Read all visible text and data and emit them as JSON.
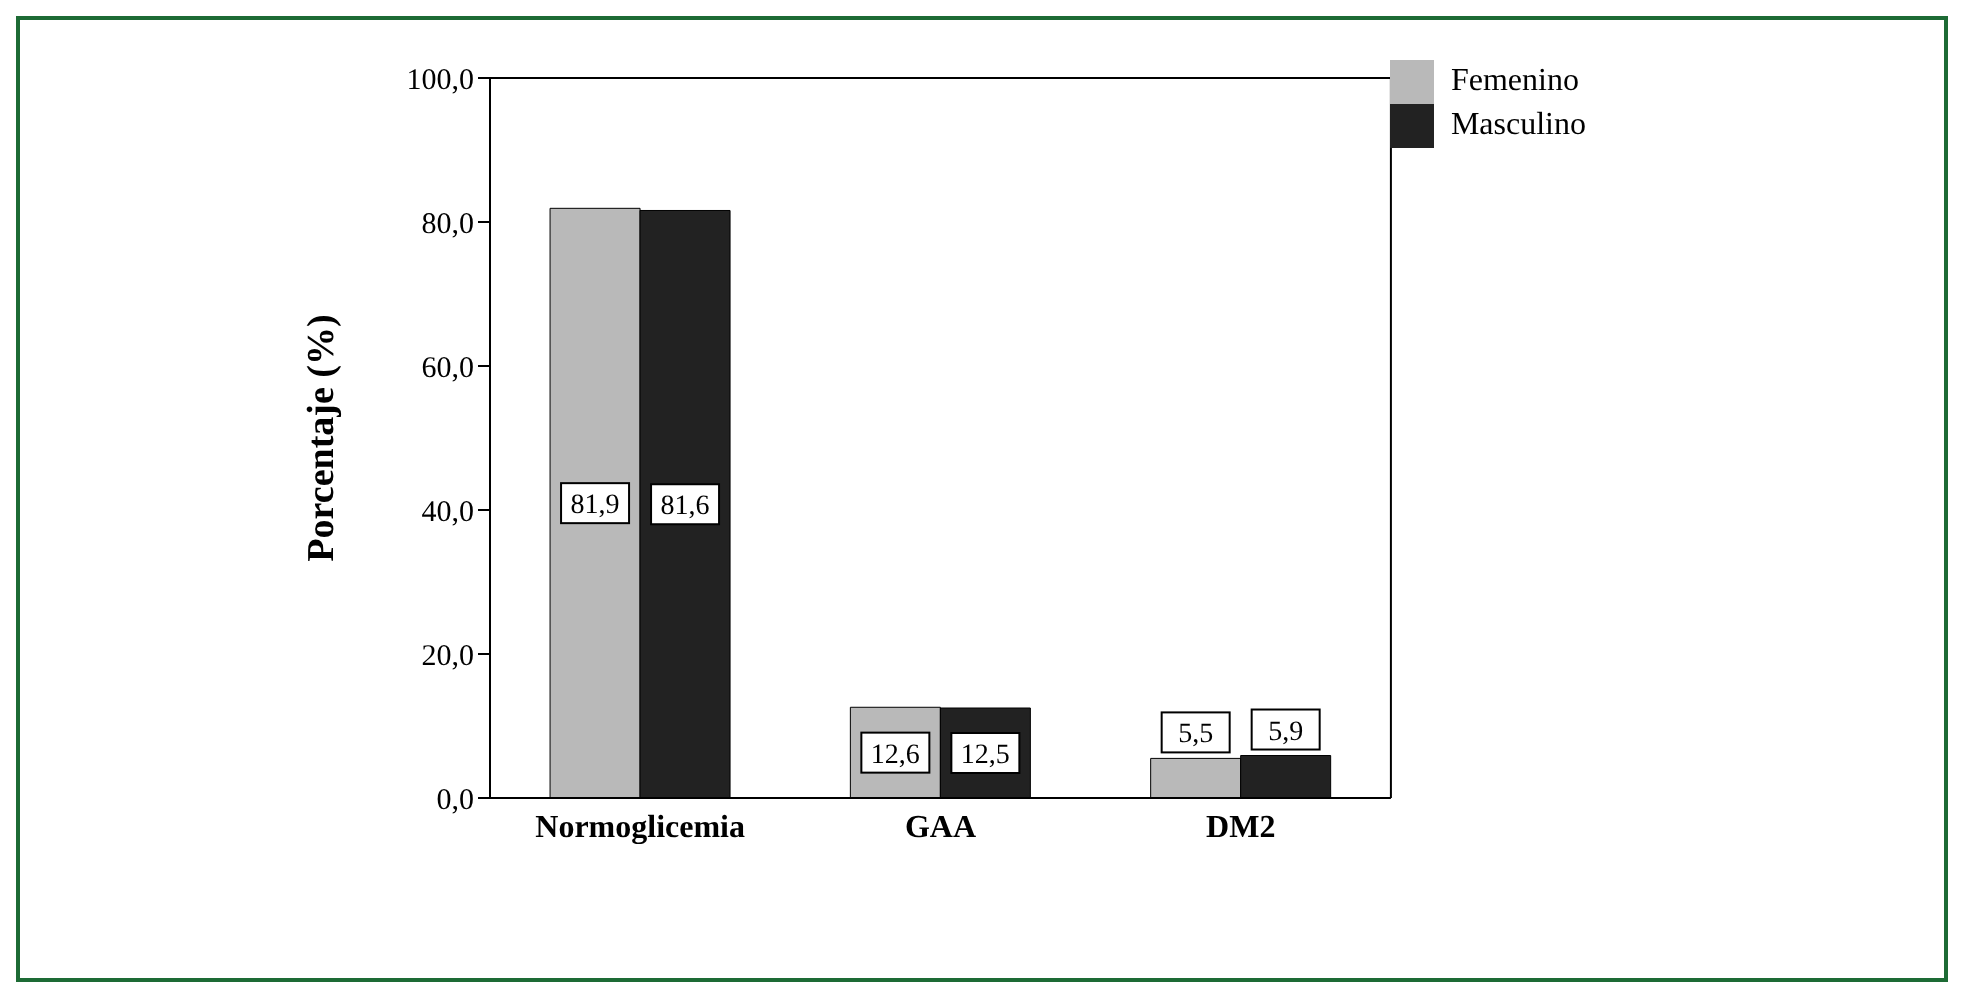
{
  "chart_data": {
    "type": "bar",
    "ylabel": "Porcentaje (%)",
    "categories": [
      "Normoglicemia",
      "GAA",
      "DM2"
    ],
    "series": [
      {
        "name": "Femenino",
        "color": "#b9b9b9",
        "values": [
          81.9,
          12.6,
          5.5
        ],
        "value_labels": [
          "81,9",
          "12,6",
          "5,5"
        ]
      },
      {
        "name": "Masculino",
        "color": "#222222",
        "values": [
          81.6,
          12.5,
          5.9
        ],
        "value_labels": [
          "81,6",
          "12,5",
          "5,9"
        ]
      }
    ],
    "ylim": [
      0,
      100
    ],
    "yticks": [
      {
        "value": 0,
        "label": "0,0"
      },
      {
        "value": 20,
        "label": "20,0"
      },
      {
        "value": 40,
        "label": "40,0"
      },
      {
        "value": 60,
        "label": "60,0"
      },
      {
        "value": 80,
        "label": "80,0"
      },
      {
        "value": 100,
        "label": "100,0"
      }
    ],
    "grid": false,
    "legend": "top right"
  }
}
